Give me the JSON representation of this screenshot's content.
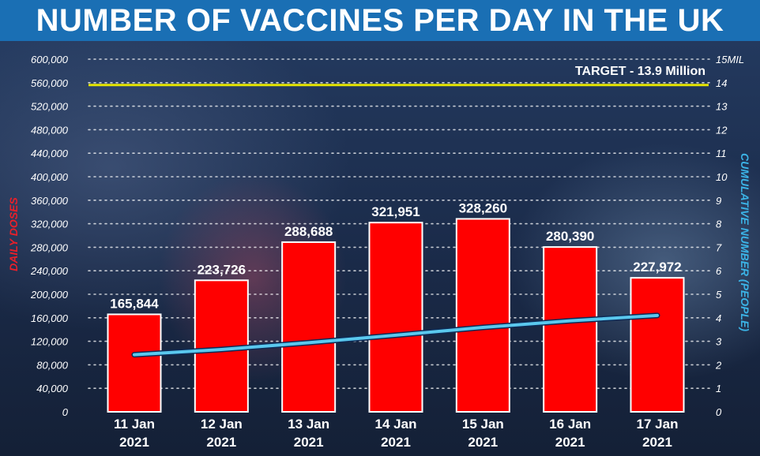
{
  "title": "NUMBER OF VACCINES PER DAY IN THE UK",
  "chart_data": {
    "type": "bar",
    "categories": [
      [
        "11 Jan",
        "2021"
      ],
      [
        "12 Jan",
        "2021"
      ],
      [
        "13 Jan",
        "2021"
      ],
      [
        "14 Jan",
        "2021"
      ],
      [
        "15 Jan",
        "2021"
      ],
      [
        "16 Jan",
        "2021"
      ],
      [
        "17 Jan",
        "2021"
      ]
    ],
    "series": [
      {
        "type": "bar",
        "axis": "left",
        "values": [
          165844,
          223726,
          288688,
          321951,
          328260,
          280390,
          227972
        ],
        "data_labels": [
          "165,844",
          "223,726",
          "288,688",
          "321,951",
          "328,260",
          "280,390",
          "227,972"
        ],
        "color": "#ff0000"
      },
      {
        "type": "line",
        "axis": "right",
        "values": [
          2.43,
          2.65,
          2.94,
          3.26,
          3.59,
          3.87,
          4.1
        ],
        "color": "#5ac8ee"
      }
    ],
    "ylabel": "DAILY DOSES",
    "y2label": "CUMULATIVE NUMBER (PEOPLE)",
    "ylim": [
      0,
      600000
    ],
    "y2lim": [
      0,
      15
    ],
    "yticks": [
      0,
      40000,
      80000,
      120000,
      160000,
      200000,
      240000,
      280000,
      320000,
      360000,
      400000,
      440000,
      480000,
      520000,
      560000,
      600000
    ],
    "ytick_labels": [
      "0",
      "40,000",
      "80,000",
      "120,000",
      "160,000",
      "200,000",
      "240,000",
      "280,000",
      "320,000",
      "360,000",
      "400,000",
      "440,000",
      "480,000",
      "520,000",
      "560,000",
      "600,000"
    ],
    "y2ticks": [
      0,
      1,
      2,
      3,
      4,
      5,
      6,
      7,
      8,
      9,
      10,
      11,
      12,
      13,
      14,
      15
    ],
    "y2tick_labels": [
      "0",
      "1",
      "2",
      "3",
      "4",
      "5",
      "6",
      "7",
      "8",
      "9",
      "10",
      "11",
      "12",
      "13",
      "14",
      "15MIL"
    ],
    "target": {
      "value": 13.9,
      "axis": "right",
      "label": "TARGET - 13.9 Million",
      "color": "#e6e600"
    },
    "grid": "horizontal dotted",
    "legend": "none"
  }
}
